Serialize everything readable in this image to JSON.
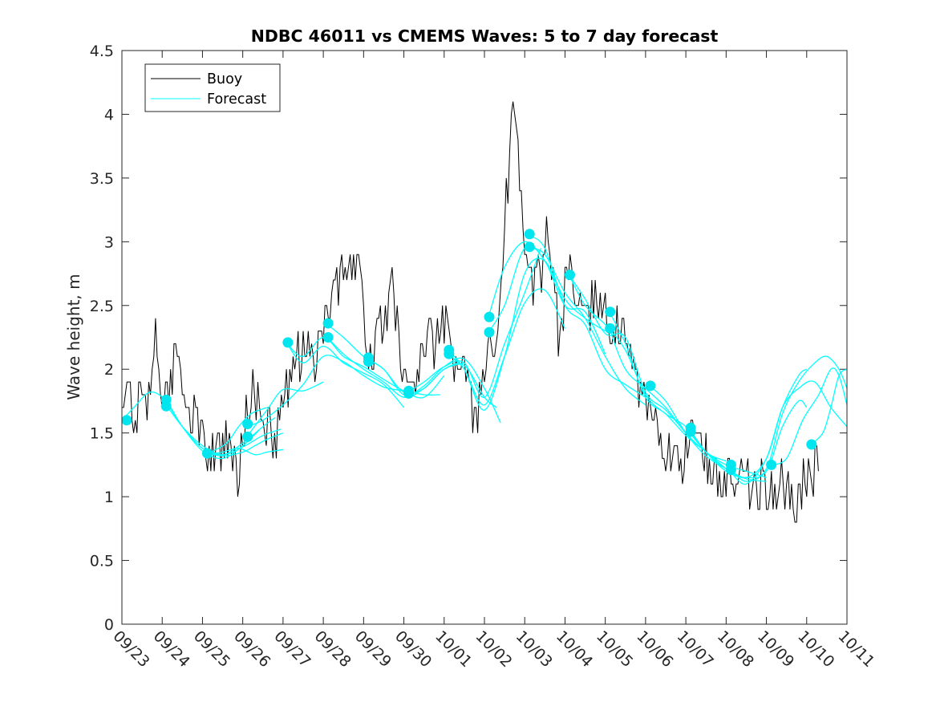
{
  "chart_data": {
    "type": "line",
    "title": "NDBC 46011 vs CMEMS Waves: 5 to 7 day forecast",
    "xlabel": "",
    "ylabel": "Wave height, m",
    "xlim": [
      0,
      18
    ],
    "ylim": [
      0,
      4.5
    ],
    "x_ticks": [
      0,
      1,
      2,
      3,
      4,
      5,
      6,
      7,
      8,
      9,
      10,
      11,
      12,
      13,
      14,
      15,
      16,
      17,
      18
    ],
    "x_tick_labels": [
      "09/23",
      "09/24",
      "09/25",
      "09/26",
      "09/27",
      "09/28",
      "09/29",
      "09/30",
      "10/01",
      "10/02",
      "10/03",
      "10/04",
      "10/05",
      "10/06",
      "10/07",
      "10/08",
      "10/09",
      "10/10",
      "10/11"
    ],
    "y_ticks": [
      0,
      0.5,
      1,
      1.5,
      2,
      2.5,
      3,
      3.5,
      4,
      4.5
    ],
    "y_tick_labels": [
      "0",
      "0.5",
      "1",
      "1.5",
      "2",
      "2.5",
      "3",
      "3.5",
      "4",
      "4.5"
    ],
    "legend": {
      "position": "top-left",
      "entries": [
        {
          "label": "Buoy",
          "color": "#000000"
        },
        {
          "label": "Forecast",
          "color": "#00ffff"
        }
      ]
    },
    "colors": {
      "buoy": "#000000",
      "forecast": "#00ffff",
      "marker": "#00e5ee"
    },
    "buoy_anchors": [
      [
        0.0,
        1.7
      ],
      [
        0.15,
        1.8
      ],
      [
        0.3,
        1.6
      ],
      [
        0.5,
        1.75
      ],
      [
        0.65,
        1.7
      ],
      [
        0.75,
        2.0
      ],
      [
        0.85,
        2.3
      ],
      [
        0.95,
        2.0
      ],
      [
        1.05,
        1.7
      ],
      [
        1.2,
        1.9
      ],
      [
        1.35,
        2.1
      ],
      [
        1.5,
        1.95
      ],
      [
        1.6,
        1.8
      ],
      [
        1.75,
        1.6
      ],
      [
        1.9,
        1.5
      ],
      [
        2.05,
        1.4
      ],
      [
        2.2,
        1.35
      ],
      [
        2.4,
        1.3
      ],
      [
        2.6,
        1.4
      ],
      [
        2.75,
        1.2
      ],
      [
        2.9,
        1.15
      ],
      [
        3.0,
        1.5
      ],
      [
        3.15,
        1.7
      ],
      [
        3.3,
        1.85
      ],
      [
        3.5,
        1.6
      ],
      [
        3.7,
        1.45
      ],
      [
        3.85,
        1.5
      ],
      [
        4.0,
        1.7
      ],
      [
        4.2,
        2.0
      ],
      [
        4.4,
        2.05
      ],
      [
        4.6,
        2.2
      ],
      [
        4.8,
        2.0
      ],
      [
        5.0,
        2.4
      ],
      [
        5.2,
        2.6
      ],
      [
        5.4,
        2.7
      ],
      [
        5.6,
        2.8
      ],
      [
        5.8,
        2.9
      ],
      [
        5.95,
        2.5
      ],
      [
        6.1,
        2.2
      ],
      [
        6.2,
        1.95
      ],
      [
        6.35,
        2.3
      ],
      [
        6.5,
        2.4
      ],
      [
        6.7,
        2.6
      ],
      [
        6.85,
        2.4
      ],
      [
        7.0,
        2.0
      ],
      [
        7.2,
        1.75
      ],
      [
        7.4,
        2.1
      ],
      [
        7.6,
        2.3
      ],
      [
        7.8,
        2.2
      ],
      [
        8.0,
        2.4
      ],
      [
        8.2,
        2.0
      ],
      [
        8.4,
        2.1
      ],
      [
        8.55,
        1.85
      ],
      [
        8.7,
        1.7
      ],
      [
        8.85,
        1.75
      ],
      [
        9.0,
        1.9
      ],
      [
        9.15,
        2.1
      ],
      [
        9.3,
        2.2
      ],
      [
        9.45,
        2.8
      ],
      [
        9.55,
        3.4
      ],
      [
        9.65,
        3.8
      ],
      [
        9.75,
        4.1
      ],
      [
        9.85,
        3.6
      ],
      [
        9.95,
        3.2
      ],
      [
        10.05,
        2.9
      ],
      [
        10.15,
        2.6
      ],
      [
        10.3,
        2.8
      ],
      [
        10.45,
        2.85
      ],
      [
        10.55,
        3.2
      ],
      [
        10.7,
        2.8
      ],
      [
        10.85,
        2.2
      ],
      [
        11.0,
        2.6
      ],
      [
        11.15,
        2.85
      ],
      [
        11.3,
        2.6
      ],
      [
        11.45,
        2.3
      ],
      [
        11.6,
        2.5
      ],
      [
        11.8,
        2.6
      ],
      [
        12.0,
        2.4
      ],
      [
        12.15,
        2.3
      ],
      [
        12.3,
        2.45
      ],
      [
        12.45,
        2.3
      ],
      [
        12.6,
        2.1
      ],
      [
        12.75,
        2.0
      ],
      [
        12.9,
        1.8
      ],
      [
        13.05,
        1.7
      ],
      [
        13.2,
        1.55
      ],
      [
        13.35,
        1.4
      ],
      [
        13.55,
        1.35
      ],
      [
        13.75,
        1.4
      ],
      [
        13.9,
        1.3
      ],
      [
        14.1,
        1.45
      ],
      [
        14.3,
        1.4
      ],
      [
        14.5,
        1.3
      ],
      [
        14.7,
        1.2
      ],
      [
        14.9,
        1.2
      ],
      [
        15.1,
        1.15
      ],
      [
        15.3,
        1.1
      ],
      [
        15.5,
        1.1
      ],
      [
        15.7,
        1.05
      ],
      [
        15.9,
        1.1
      ],
      [
        16.1,
        1.05
      ],
      [
        16.25,
        1.0
      ],
      [
        16.4,
        1.1
      ],
      [
        16.55,
        1.0
      ],
      [
        16.7,
        0.9
      ],
      [
        16.85,
        1.05
      ],
      [
        17.0,
        1.1
      ],
      [
        17.15,
        1.15
      ],
      [
        17.3,
        1.35
      ]
    ],
    "forecast_series": [
      {
        "name": "Forecast run 1",
        "x": [
          0.0,
          0.3,
          0.7,
          1.1,
          1.5,
          2.0,
          2.5,
          3.0,
          3.4
        ],
        "y": [
          1.6,
          1.7,
          1.82,
          1.75,
          1.55,
          1.36,
          1.3,
          1.4,
          1.52
        ]
      },
      {
        "name": "Forecast run 2",
        "x": [
          1.1,
          1.5,
          2.0,
          2.5,
          3.0,
          3.5,
          3.8
        ],
        "y": [
          1.75,
          1.55,
          1.38,
          1.33,
          1.42,
          1.55,
          1.62
        ]
      },
      {
        "name": "Forecast run 3",
        "x": [
          1.1,
          1.5,
          2.0,
          2.5,
          3.0,
          3.5,
          3.95
        ],
        "y": [
          1.72,
          1.55,
          1.4,
          1.33,
          1.39,
          1.48,
          1.53
        ]
      },
      {
        "name": "Forecast run 4",
        "x": [
          2.0,
          2.5,
          3.0,
          3.3,
          3.6,
          4.0
        ],
        "y": [
          1.35,
          1.32,
          1.35,
          1.4,
          1.45,
          1.5
        ]
      },
      {
        "name": "Forecast run 5",
        "x": [
          2.1,
          2.5,
          2.9,
          3.3,
          3.6,
          4.0
        ],
        "y": [
          1.33,
          1.35,
          1.38,
          1.33,
          1.35,
          1.37
        ]
      },
      {
        "name": "Forecast run 6",
        "x": [
          2.2,
          2.6,
          2.9,
          3.2,
          3.6
        ],
        "y": [
          1.35,
          1.42,
          1.55,
          1.65,
          1.7
        ]
      },
      {
        "name": "Forecast run 7",
        "x": [
          3.1,
          3.6,
          4.0,
          4.5,
          5.0
        ],
        "y": [
          1.47,
          1.68,
          1.84,
          1.83,
          1.9
        ]
      },
      {
        "name": "Forecast run 8",
        "x": [
          3.1,
          3.5,
          4.0,
          4.5,
          5.0,
          5.5,
          6.0,
          6.5,
          7.0,
          7.5,
          7.9
        ],
        "y": [
          1.55,
          1.6,
          1.72,
          1.88,
          2.1,
          2.06,
          1.95,
          1.86,
          1.83,
          1.8,
          1.8
        ]
      },
      {
        "name": "Forecast run 9",
        "x": [
          4.1,
          4.5,
          5.0,
          5.5,
          6.0,
          6.5,
          7.0,
          7.5,
          8.0
        ],
        "y": [
          2.2,
          2.1,
          2.25,
          2.1,
          2.02,
          1.92,
          1.83,
          1.78,
          1.95
        ]
      },
      {
        "name": "Forecast run 10",
        "x": [
          4.1,
          4.5,
          5.0,
          5.5,
          6.0,
          6.5,
          7.0
        ],
        "y": [
          2.2,
          2.05,
          2.18,
          2.05,
          1.97,
          1.88,
          1.7
        ]
      },
      {
        "name": "Forecast run 11",
        "x": [
          5.1,
          5.5,
          6.0,
          6.5,
          7.0,
          7.5,
          8.0,
          8.5
        ],
        "y": [
          2.25,
          2.12,
          2.0,
          1.9,
          1.78,
          1.85,
          2.0,
          2.05
        ]
      },
      {
        "name": "Forecast run 12",
        "x": [
          5.1,
          5.5,
          6.0,
          6.5,
          7.0,
          7.5,
          8.0,
          8.5,
          9.0,
          9.4
        ],
        "y": [
          2.35,
          2.25,
          2.1,
          2.0,
          1.8,
          1.87,
          2.02,
          2.08,
          1.85,
          1.58
        ]
      },
      {
        "name": "Forecast run 13",
        "x": [
          6.1,
          6.5,
          7.0,
          7.5,
          8.0,
          8.5,
          9.0,
          9.3
        ],
        "y": [
          2.08,
          2.0,
          1.82,
          1.85,
          2.0,
          2.03,
          1.78,
          1.7
        ]
      },
      {
        "name": "Forecast run 14",
        "x": [
          7.1,
          7.5,
          8.0,
          8.5,
          9.0,
          9.5,
          10.0,
          10.4
        ],
        "y": [
          1.82,
          1.9,
          2.02,
          2.05,
          1.78,
          2.2,
          2.6,
          2.95
        ]
      },
      {
        "name": "Forecast run 15",
        "x": [
          8.1,
          8.5,
          9.0,
          9.5,
          10.0,
          10.5,
          11.0
        ],
        "y": [
          2.12,
          2.0,
          1.72,
          2.1,
          2.52,
          2.62,
          2.32
        ]
      },
      {
        "name": "Forecast run 16",
        "x": [
          8.1,
          8.5,
          9.0,
          9.5,
          10.0,
          10.5,
          11.0
        ],
        "y": [
          2.15,
          2.0,
          1.68,
          2.1,
          2.75,
          2.85,
          2.5
        ]
      },
      {
        "name": "Forecast run 17",
        "x": [
          9.1,
          9.5,
          10.0,
          10.5,
          11.0,
          11.5,
          12.0
        ],
        "y": [
          2.29,
          2.5,
          2.95,
          2.85,
          2.5,
          2.45,
          2.12
        ]
      },
      {
        "name": "Forecast run 18",
        "x": [
          9.1,
          9.5,
          10.0,
          10.5,
          11.0,
          11.5,
          12.0
        ],
        "y": [
          2.41,
          2.8,
          3.0,
          2.85,
          2.55,
          2.4,
          2.3
        ]
      },
      {
        "name": "Forecast run 19",
        "x": [
          10.1,
          10.5,
          11.0,
          11.5,
          12.0,
          12.5,
          13.0
        ],
        "y": [
          2.95,
          2.9,
          2.6,
          2.4,
          2.1,
          1.85,
          1.72
        ]
      },
      {
        "name": "Forecast run 20",
        "x": [
          10.1,
          10.5,
          11.0,
          11.5,
          12.0,
          12.5,
          13.0
        ],
        "y": [
          3.05,
          2.95,
          2.5,
          2.35,
          2.0,
          1.88,
          1.78
        ]
      },
      {
        "name": "Forecast run 21",
        "x": [
          11.1,
          11.5,
          12.0,
          12.5,
          13.0,
          13.5,
          14.0
        ],
        "y": [
          2.74,
          2.55,
          2.28,
          2.25,
          1.82,
          1.68,
          1.5
        ]
      },
      {
        "name": "Forecast run 22",
        "x": [
          11.1,
          11.5,
          12.0,
          12.5,
          13.0,
          13.5,
          14.0,
          14.5,
          15.0
        ],
        "y": [
          2.74,
          2.5,
          2.35,
          2.15,
          1.8,
          1.65,
          1.55,
          1.35,
          1.28
        ]
      },
      {
        "name": "Forecast run 23",
        "x": [
          12.1,
          12.5,
          13.0,
          13.5,
          14.0,
          14.5,
          15.0
        ],
        "y": [
          2.45,
          2.2,
          1.78,
          1.65,
          1.48,
          1.35,
          1.22
        ]
      },
      {
        "name": "Forecast run 24",
        "x": [
          12.1,
          12.5,
          13.0,
          13.5,
          14.0,
          14.5,
          15.0,
          15.5,
          16.0
        ],
        "y": [
          2.32,
          2.0,
          1.85,
          1.7,
          1.5,
          1.35,
          1.25,
          1.2,
          1.15
        ]
      },
      {
        "name": "Forecast run 25",
        "x": [
          13.1,
          13.5,
          14.0,
          14.5,
          15.0,
          15.5,
          16.0
        ],
        "y": [
          1.87,
          1.75,
          1.5,
          1.32,
          1.22,
          1.14,
          1.12
        ]
      },
      {
        "name": "Forecast run 26",
        "x": [
          14.1,
          14.5,
          15.0,
          15.5,
          16.0,
          16.4,
          16.8,
          17.0
        ],
        "y": [
          1.53,
          1.35,
          1.2,
          1.15,
          1.2,
          1.55,
          1.75,
          1.7
        ]
      },
      {
        "name": "Forecast run 27",
        "x": [
          14.1,
          14.5,
          15.0,
          15.5,
          16.0,
          16.4,
          16.8,
          17.0
        ],
        "y": [
          1.5,
          1.35,
          1.22,
          1.15,
          1.3,
          1.7,
          1.95,
          2.0
        ]
      },
      {
        "name": "Forecast run 28",
        "x": [
          15.1,
          15.5,
          16.0,
          16.4,
          16.8,
          17.2,
          17.5,
          17.8,
          18.0
        ],
        "y": [
          1.22,
          1.12,
          1.22,
          1.65,
          1.9,
          2.05,
          2.1,
          2.0,
          1.85
        ]
      },
      {
        "name": "Forecast run 29",
        "x": [
          15.1,
          15.5,
          16.0,
          16.4,
          16.8,
          17.2,
          17.6,
          18.0
        ],
        "y": [
          1.2,
          1.1,
          1.3,
          1.7,
          1.85,
          1.9,
          1.7,
          1.55
        ]
      },
      {
        "name": "Forecast run 30",
        "x": [
          16.1,
          16.5,
          16.9,
          17.3,
          17.6,
          17.8,
          18.0
        ],
        "y": [
          1.25,
          1.3,
          1.6,
          1.8,
          2.0,
          1.95,
          1.72
        ]
      },
      {
        "name": "Forecast run 31",
        "x": [
          17.1,
          17.4,
          17.6,
          17.8,
          18.0
        ],
        "y": [
          1.41,
          1.5,
          1.7,
          1.95,
          2.0
        ]
      }
    ],
    "forecast_markers": [
      {
        "x": 0.12,
        "y": 1.6
      },
      {
        "x": 1.1,
        "y": 1.76
      },
      {
        "x": 1.1,
        "y": 1.71
      },
      {
        "x": 2.12,
        "y": 1.34
      },
      {
        "x": 3.12,
        "y": 1.57
      },
      {
        "x": 3.12,
        "y": 1.47
      },
      {
        "x": 4.12,
        "y": 2.21
      },
      {
        "x": 5.12,
        "y": 2.36
      },
      {
        "x": 5.12,
        "y": 2.25
      },
      {
        "x": 6.12,
        "y": 2.09
      },
      {
        "x": 6.12,
        "y": 2.06
      },
      {
        "x": 7.12,
        "y": 1.83
      },
      {
        "x": 7.12,
        "y": 1.81
      },
      {
        "x": 8.12,
        "y": 2.15
      },
      {
        "x": 8.12,
        "y": 2.12
      },
      {
        "x": 9.12,
        "y": 2.41
      },
      {
        "x": 9.12,
        "y": 2.29
      },
      {
        "x": 10.12,
        "y": 3.06
      },
      {
        "x": 10.12,
        "y": 2.96
      },
      {
        "x": 11.12,
        "y": 2.74
      },
      {
        "x": 12.12,
        "y": 2.45
      },
      {
        "x": 12.12,
        "y": 2.32
      },
      {
        "x": 13.12,
        "y": 1.87
      },
      {
        "x": 14.12,
        "y": 1.54
      },
      {
        "x": 14.12,
        "y": 1.51
      },
      {
        "x": 15.12,
        "y": 1.25
      },
      {
        "x": 15.12,
        "y": 1.21
      },
      {
        "x": 16.12,
        "y": 1.25
      },
      {
        "x": 17.12,
        "y": 1.41
      }
    ]
  }
}
